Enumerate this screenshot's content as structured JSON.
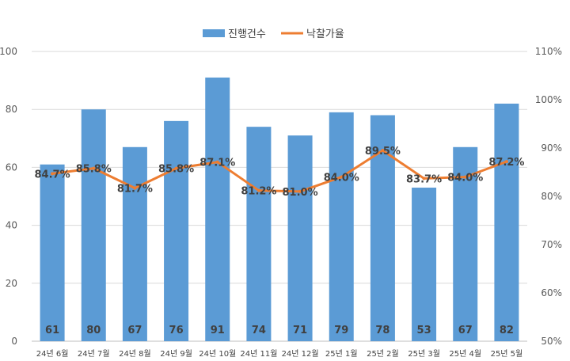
{
  "chart_data": {
    "type": "bar",
    "categories": [
      "24년 6월",
      "24년 7월",
      "24년 8월",
      "24년 9월",
      "24년 10월",
      "24년 11월",
      "24년 12월",
      "25년 1월",
      "25년 2월",
      "25년 3월",
      "25년 4월",
      "25년 5월"
    ],
    "series": [
      {
        "name": "진행건수",
        "type": "bar",
        "axis": "left",
        "color": "#5B9BD5",
        "values": [
          61,
          80,
          67,
          76,
          91,
          74,
          71,
          79,
          78,
          53,
          67,
          82
        ],
        "labels": [
          "61",
          "80",
          "67",
          "76",
          "91",
          "74",
          "71",
          "79",
          "78",
          "53",
          "67",
          "82"
        ]
      },
      {
        "name": "낙찰가율",
        "type": "line",
        "axis": "right",
        "color": "#ED7D31",
        "values": [
          84.7,
          85.8,
          81.7,
          85.8,
          87.1,
          81.2,
          81.0,
          84.0,
          89.5,
          83.7,
          84.0,
          87.2
        ],
        "labels": [
          "84.7%",
          "85.8%",
          "81.7%",
          "85.8%",
          "87.1%",
          "81.2%",
          "81.0%",
          "84.0%",
          "89.5%",
          "83.7%",
          "84.0%",
          "87.2%"
        ]
      }
    ],
    "y_left": {
      "min": 0,
      "max": 100,
      "ticks": [
        "0",
        "20",
        "40",
        "60",
        "80",
        "100"
      ]
    },
    "y_right": {
      "min": 50,
      "max": 110,
      "ticks": [
        "50%",
        "60%",
        "70%",
        "80%",
        "90%",
        "100%",
        "110%"
      ]
    },
    "grid": true,
    "legend": "top-center"
  }
}
